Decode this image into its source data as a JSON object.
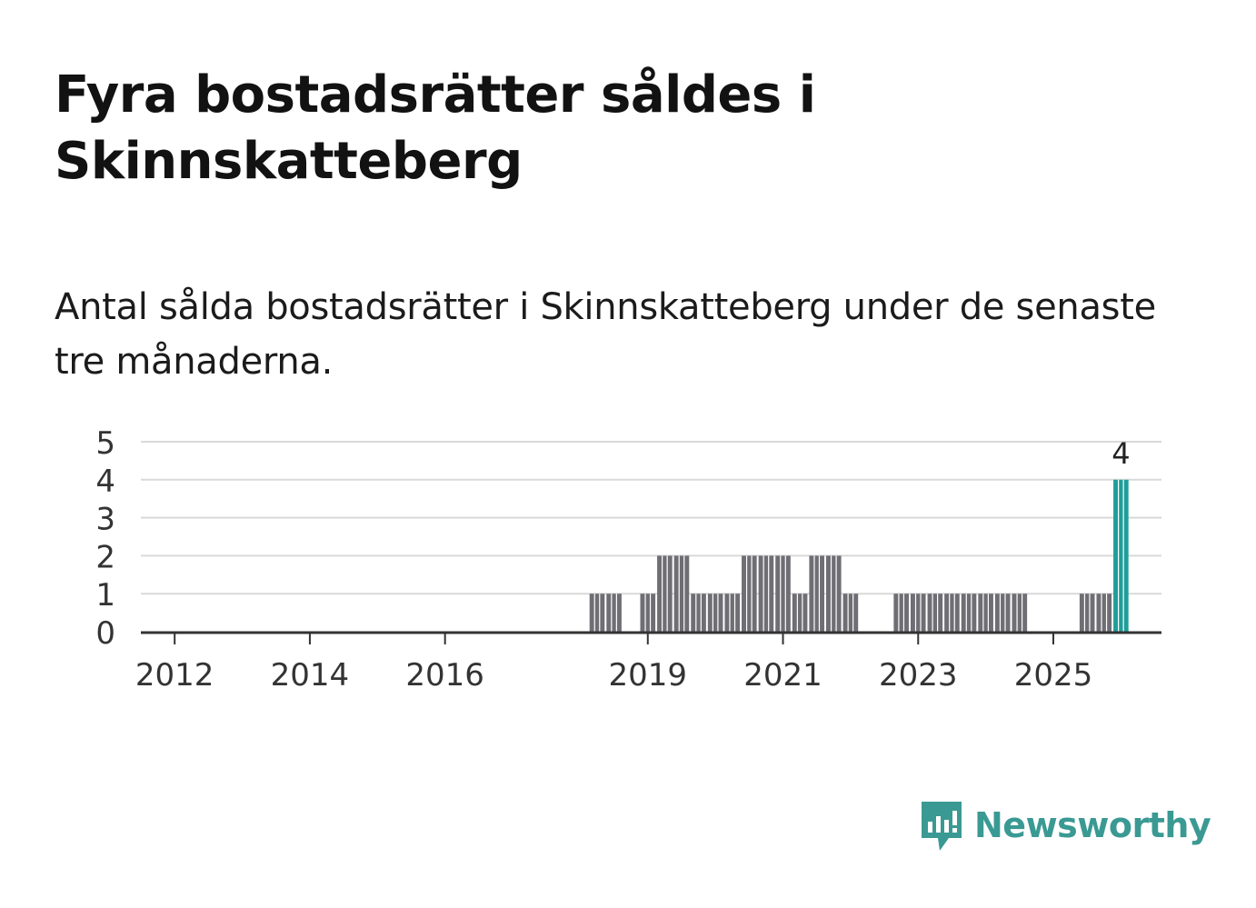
{
  "title": "Fyra bostadsrätter såldes i Skinnskatteberg",
  "subtitle": "Antal sålda bostadsrätter i Skinnskatteberg under de senaste tre månaderna.",
  "brand": {
    "name": "Newsworthy",
    "color": "#3a9a93",
    "icon": "newsworthy-logo-icon"
  },
  "colors": {
    "bar": "#6f6e74",
    "highlight": "#1f9e99",
    "grid": "#d9d9d9",
    "axis": "#333333"
  },
  "chart_data": {
    "type": "bar",
    "title": "Fyra bostadsrätter såldes i Skinnskatteberg",
    "xlabel": "",
    "ylabel": "",
    "ylim": [
      0,
      5
    ],
    "yticks": [
      0,
      1,
      2,
      3,
      4,
      5
    ],
    "grid": true,
    "period": "quarter",
    "x_start": 2011.5,
    "x_end": 2026.6,
    "xticks": [
      {
        "label": "2012",
        "x": 2012.0
      },
      {
        "label": "2014",
        "x": 2014.0
      },
      {
        "label": "2016",
        "x": 2016.0
      },
      {
        "label": "2019",
        "x": 2019.0
      },
      {
        "label": "2021",
        "x": 2021.0
      },
      {
        "label": "2023",
        "x": 2023.0
      },
      {
        "label": "2025",
        "x": 2025.0
      }
    ],
    "points": [
      {
        "x": 2018.25,
        "value": 1
      },
      {
        "x": 2018.5,
        "value": 1
      },
      {
        "x": 2019.0,
        "value": 1
      },
      {
        "x": 2019.25,
        "value": 2
      },
      {
        "x": 2019.5,
        "value": 2
      },
      {
        "x": 2019.75,
        "value": 1
      },
      {
        "x": 2020.0,
        "value": 1
      },
      {
        "x": 2020.25,
        "value": 1
      },
      {
        "x": 2020.5,
        "value": 2
      },
      {
        "x": 2020.75,
        "value": 2
      },
      {
        "x": 2021.0,
        "value": 2
      },
      {
        "x": 2021.25,
        "value": 1
      },
      {
        "x": 2021.5,
        "value": 2
      },
      {
        "x": 2021.75,
        "value": 2
      },
      {
        "x": 2022.0,
        "value": 1
      },
      {
        "x": 2022.75,
        "value": 1
      },
      {
        "x": 2023.0,
        "value": 1
      },
      {
        "x": 2023.25,
        "value": 1
      },
      {
        "x": 2023.5,
        "value": 1
      },
      {
        "x": 2023.75,
        "value": 1
      },
      {
        "x": 2024.0,
        "value": 1
      },
      {
        "x": 2024.25,
        "value": 1
      },
      {
        "x": 2024.5,
        "value": 1
      },
      {
        "x": 2025.5,
        "value": 1
      },
      {
        "x": 2025.75,
        "value": 1
      },
      {
        "x": 2026.0,
        "value": 4,
        "highlight": true,
        "label": "4"
      }
    ]
  }
}
